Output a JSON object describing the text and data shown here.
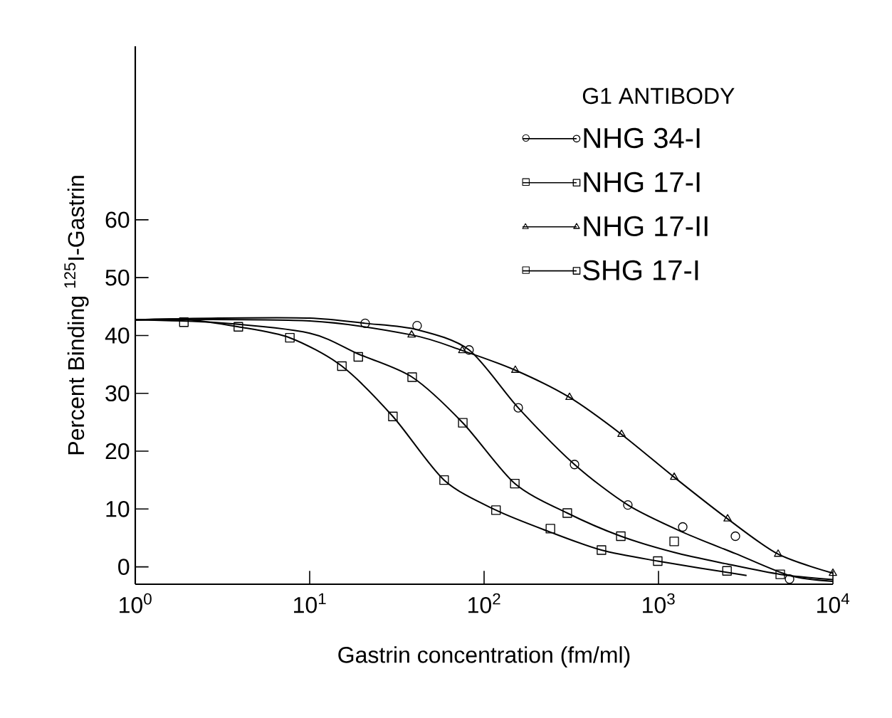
{
  "chart_data": {
    "type": "scatter",
    "xlabel": "Gastrin concentration (fm/ml)",
    "ylabel": "Percent Binding $^{125}$I-Gastrin",
    "legend_title": "G1 ANTIBODY",
    "legend": "top right",
    "log": "x",
    "xlim": [
      1,
      10000
    ],
    "ylim": [
      -3,
      90
    ],
    "xticks": [
      {
        "value": 1,
        "label": "10$^{0}$"
      },
      {
        "value": 10,
        "label": "10$^{1}$"
      },
      {
        "value": 100,
        "label": "10$^{2}$"
      },
      {
        "value": 1000,
        "label": "10$^{3}$"
      },
      {
        "value": 10000,
        "label": "10$^{4}$"
      }
    ],
    "yticks": [
      0,
      10,
      20,
      30,
      40,
      50,
      60
    ],
    "series": [
      {
        "name": "NHG 34-I",
        "color": "#000000",
        "marker": "circle",
        "x": [
          20.8,
          41.3,
          82,
          157,
          330,
          667,
          1377,
          2760,
          5640
        ],
        "values": [
          42.1,
          41.7,
          37.5,
          27.5,
          17.7,
          10.7,
          6.9,
          5.3,
          -2.1
        ]
      },
      {
        "name": "NHG 17-I",
        "color": "#000000",
        "marker": "square",
        "x": [
          19,
          38.7,
          75.5,
          150,
          300,
          608,
          1230,
          2470,
          4990
        ],
        "values": [
          36.3,
          32.8,
          24.9,
          14.4,
          9.3,
          5.3,
          4.4,
          -0.7,
          -1.3
        ]
      },
      {
        "name": "NHG 17-II",
        "color": "#000000",
        "marker": "triangle",
        "x": [
          38.4,
          75,
          151,
          309,
          614,
          1230,
          2490,
          4850,
          10000
        ],
        "values": [
          40.1,
          37.4,
          34.0,
          29.3,
          22.9,
          15.5,
          8.3,
          2.2,
          -1.1
        ]
      },
      {
        "name": "SHG 17-I",
        "color": "#000000",
        "marker": "square",
        "x": [
          1.9,
          3.9,
          7.7,
          15.3,
          30,
          59,
          117,
          240,
          471,
          990
        ],
        "values": [
          42.3,
          41.5,
          39.6,
          34.7,
          26.0,
          15.0,
          9.8,
          6.6,
          2.9,
          1.0
        ]
      },
      {
        "type": "line",
        "color": "#000000",
        "marker": "none",
        "x": [
          1,
          3,
          10,
          20.8,
          41.3,
          82,
          157,
          330,
          667,
          1377,
          2760,
          5640,
          10000
        ],
        "values": [
          42.7,
          43.0,
          43.0,
          42.1,
          41.0,
          37.5,
          27.5,
          17.7,
          10.7,
          6.0,
          2.3,
          -1.5,
          -2.5
        ]
      },
      {
        "type": "line",
        "color": "#000000",
        "marker": "none",
        "x": [
          1,
          3,
          10,
          19,
          38.7,
          75.5,
          150,
          300,
          608,
          1230,
          2470,
          5000,
          10000
        ],
        "values": [
          42.7,
          42.2,
          40.4,
          36.8,
          32.8,
          24.9,
          14.4,
          9.3,
          5.3,
          2.5,
          0.5,
          -1.3,
          -2.2
        ]
      },
      {
        "type": "line",
        "color": "#000000",
        "marker": "none",
        "x": [
          1,
          10,
          38.4,
          75,
          151,
          309,
          614,
          1230,
          2490,
          4850,
          10000
        ],
        "values": [
          42.7,
          42.5,
          40.1,
          37.4,
          34.0,
          29.3,
          22.9,
          15.5,
          8.3,
          2.2,
          -1.1
        ]
      },
      {
        "type": "line",
        "color": "#000000",
        "marker": "none",
        "x": [
          1,
          1.9,
          3.9,
          7.7,
          15.3,
          30,
          59,
          117,
          240,
          471,
          990,
          3200
        ],
        "values": [
          42.7,
          42.8,
          41.5,
          39.6,
          34.7,
          26.0,
          15.0,
          9.8,
          6.0,
          2.9,
          1.0,
          -1.5
        ]
      }
    ]
  }
}
